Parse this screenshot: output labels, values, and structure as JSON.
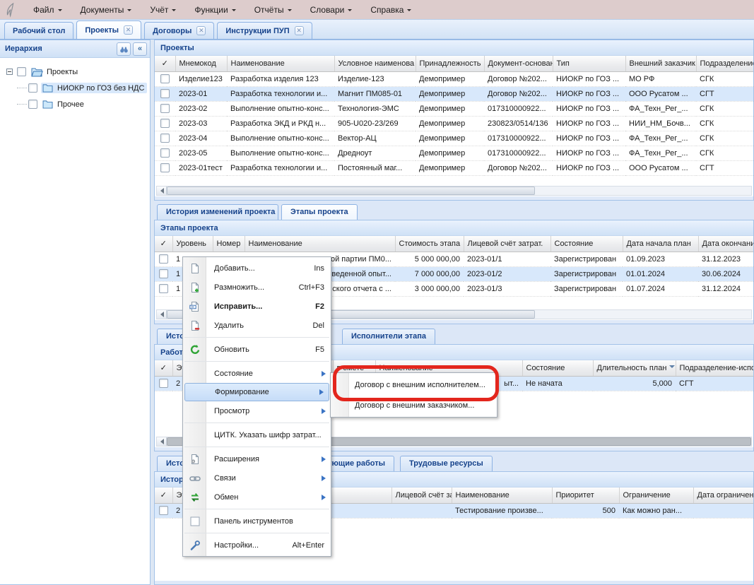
{
  "colors": {
    "selection": "#d8e8fb",
    "annotation_red": "#e3261d",
    "tab_text": "#15428b"
  },
  "menubar": {
    "items": [
      "Файл",
      "Документы",
      "Учёт",
      "Функции",
      "Отчёты",
      "Словари",
      "Справка"
    ]
  },
  "tabbar": {
    "tabs": [
      {
        "label": "Рабочий стол",
        "closable": false,
        "active": false
      },
      {
        "label": "Проекты",
        "closable": true,
        "active": true
      },
      {
        "label": "Договоры",
        "closable": true,
        "active": false
      },
      {
        "label": "Инструкции ПУП",
        "closable": true,
        "active": false
      }
    ]
  },
  "sidebar": {
    "title": "Иерархия",
    "collapse_glyph": "«",
    "tree": [
      {
        "label": "Проекты",
        "level": 0,
        "selected": false,
        "expander": true
      },
      {
        "label": "НИОКР по ГОЗ без НДС",
        "level": 1,
        "selected": true
      },
      {
        "label": "Прочее",
        "level": 1,
        "selected": false
      }
    ]
  },
  "check_glyph": "✓",
  "projects": {
    "title": "Проекты",
    "columns": [
      "Мнемокод",
      "Наименование",
      "Условное наименова",
      "Принадлежность",
      "Документ-основан",
      "Тип",
      "Внешний заказчик",
      "Подразделение"
    ],
    "rows": [
      [
        "Изделие123",
        "Разработка изделия 123",
        "Изделие-123",
        "Демопример",
        "Договор №202...",
        "НИОКР по ГОЗ ...",
        "МО РФ",
        "СГК"
      ],
      [
        "2023-01",
        "Разработка технологии и...",
        "Магнит ПМ085-01",
        "Демопример",
        "Договор №202...",
        "НИОКР по ГОЗ ...",
        "ООО Русатом ...",
        "СГТ"
      ],
      [
        "2023-02",
        "Выполнение опытно-конс...",
        "Технология-ЭМС",
        "Демопример",
        "017310000922...",
        "НИОКР по ГОЗ ...",
        "ФА_Техн_Рег_...",
        "СГК"
      ],
      [
        "2023-03",
        "Разработка ЭКД и РКД н...",
        "905-U020-23/269",
        "Демопример",
        "230823/0514/136",
        "НИОКР по ГОЗ ...",
        "НИИ_НМ_Бочв...",
        "СГК"
      ],
      [
        "2023-04",
        "Выполнение опытно-конс...",
        "Вектор-АЦ",
        "Демопример",
        "017310000922...",
        "НИОКР по ГОЗ ...",
        "ФА_Техн_Рег_...",
        "СГК"
      ],
      [
        "2023-05",
        "Выполнение опытно-конс...",
        "Дредноут",
        "Демопример",
        "017310000922...",
        "НИОКР по ГОЗ ...",
        "ФА_Техн_Рег_...",
        "СГК"
      ],
      [
        "2023-01тест",
        "Разработка технологии и...",
        "Постоянный маг...",
        "Демопример",
        "Договор №202...",
        "НИОКР по ГОЗ ...",
        "ООО Русатом ...",
        "СГТ"
      ]
    ],
    "selected_index": 1
  },
  "project_tabs": [
    {
      "label": "История изменений проекта",
      "active": false
    },
    {
      "label": "Этапы проекта",
      "active": true
    }
  ],
  "stages": {
    "title": "Этапы проекта",
    "columns": [
      "Уровень",
      "Номер",
      "Наименование",
      "Стоимость этапа",
      "Лицевой счёт затрат.",
      "Состояние",
      "Дата начала план",
      "Дата окончани"
    ],
    "rows": [
      [
        "1",
        "",
        "ой партии ПМ0...",
        "5 000 000,00",
        "2023-01/1",
        "Зарегистрирован",
        "01.09.2023",
        "31.12.2023"
      ],
      [
        "1",
        "",
        "веденной опыт...",
        "7 000 000,00",
        "2023-01/2",
        "Зарегистрирован",
        "01.01.2024",
        "30.06.2024"
      ],
      [
        "1",
        "",
        "ского отчета с ...",
        "3 000 000,00",
        "2023-01/3",
        "Зарегистрирован",
        "01.07.2024",
        "31.12.2024"
      ]
    ],
    "selected_index": 1
  },
  "stage_tabs": [
    {
      "label": "История",
      "active": false
    },
    {
      "label": "а",
      "active": false,
      "fragment": true
    },
    {
      "label": "Исполнители этапа",
      "active": false
    }
  ],
  "works": {
    "title": "Работы",
    "columns": [
      "Эта",
      "",
      "в смете",
      "Наименование",
      "Состояние",
      "Длительность план",
      "Подразделение-испо"
    ],
    "sort_column": 5,
    "rows": [
      [
        "2",
        "",
        "",
        "ыт...",
        "Не начата",
        "5,000",
        "СГТ"
      ]
    ],
    "selected_index": 0
  },
  "work_tabs": [
    {
      "label": "История",
      "active": false
    },
    {
      "label": "вующие работы",
      "active": false,
      "fragment": true
    },
    {
      "label": "Трудовые ресурсы",
      "active": false
    }
  ],
  "history": {
    "title": "История",
    "columns": [
      "Эта",
      "вая работа",
      "Лицевой счёт затр",
      "Наименование",
      "Приоритет",
      "Ограничение",
      "Дата ограничен"
    ],
    "rows": [
      [
        "2",
        "",
        "",
        "Тестирование произве...",
        "500",
        "Как можно ран...",
        ""
      ]
    ],
    "selected_index": 0
  },
  "context_menu": {
    "items": [
      {
        "label": "Добавить...",
        "shortcut": "Ins",
        "icon": "add-doc-icon"
      },
      {
        "label": "Размножить...",
        "shortcut": "Ctrl+F3",
        "icon": "copy-doc-icon"
      },
      {
        "label": "Исправить...",
        "shortcut": "F2",
        "icon": "edit-doc-icon",
        "bold": true
      },
      {
        "label": "Удалить",
        "shortcut": "Del",
        "icon": "delete-doc-icon"
      },
      {
        "separator": true
      },
      {
        "label": "Обновить",
        "shortcut": "F5",
        "icon": "refresh-icon"
      },
      {
        "separator": true
      },
      {
        "label": "Состояние",
        "submenu": true
      },
      {
        "label": "Формирование",
        "submenu": true,
        "highlighted": true
      },
      {
        "label": "Просмотр",
        "submenu": true
      },
      {
        "separator": true
      },
      {
        "label": "ЦИТК. Указать шифр затрат..."
      },
      {
        "separator": true
      },
      {
        "label": "Расширения",
        "submenu": true,
        "icon": "extensions-icon"
      },
      {
        "label": "Связи",
        "submenu": true,
        "icon": "links-icon"
      },
      {
        "label": "Обмен",
        "submenu": true,
        "icon": "exchange-icon"
      },
      {
        "separator": true
      },
      {
        "label": "Панель инструментов",
        "icon": "toolbar-checkbox-icon"
      },
      {
        "separator": true
      },
      {
        "label": "Настройки...",
        "shortcut": "Alt+Enter",
        "icon": "settings-icon"
      }
    ]
  },
  "submenu": {
    "items": [
      {
        "label": "Договор с внешним исполнителем...",
        "annotated": true
      },
      {
        "label": "Договор с внешним заказчиком...",
        "annotated": false
      }
    ]
  }
}
